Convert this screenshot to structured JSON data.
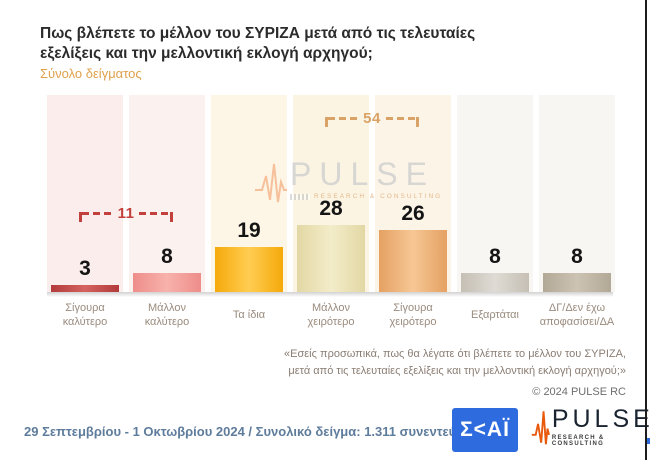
{
  "header": {
    "title": "Πως βλέπετε το μέλλον του ΣΥΡΙΖΑ μετά από τις τελευταίες\nεξελίξεις και την μελλοντική εκλογή αρχηγού;",
    "subtitle": "Σύνολο δείγματος"
  },
  "chart_data": {
    "type": "bar",
    "title": "Πως βλέπετε το μέλλον του ΣΥΡΙΖΑ μετά από τις τελευταίες εξελίξεις και την μελλοντική εκλογή αρχηγού;",
    "subtitle": "Σύνολο δείγματος",
    "categories": [
      "Σίγουρα\nκαλύτερο",
      "Μάλλον\nκαλύτερο",
      "Τα ίδια",
      "Μάλλον\nχειρότερο",
      "Σίγουρα\nχειρότερο",
      "Εξαρτάται",
      "ΔΓ/Δεν έχω\nαποφασίσει/ΔΑ"
    ],
    "values": [
      3,
      8,
      19,
      28,
      26,
      8,
      8
    ],
    "group_sums": [
      {
        "label": "11",
        "from": 0,
        "to": 1,
        "color": "#c2413c"
      },
      {
        "label": "54",
        "from": 3,
        "to": 4,
        "color": "#d9a266"
      }
    ],
    "bar_colors": [
      {
        "edge": "#b23b3b",
        "center": "#d4625f"
      },
      {
        "edge": "#ee8d8a",
        "center": "#f8b2ac"
      },
      {
        "edge": "#f5a90a",
        "center": "#ffcd52"
      },
      {
        "edge": "#e2d7a4",
        "center": "#f3ecc9"
      },
      {
        "edge": "#e5a162",
        "center": "#f6c795"
      },
      {
        "edge": "#c5bfb4",
        "center": "#dfdbd4"
      },
      {
        "edge": "#b2a896",
        "center": "#ccc3b3"
      }
    ],
    "column_bg": [
      "#faedeb",
      "#fbf1ef",
      "#fdf6e7",
      "#fbf4e3",
      "#fcf4e7",
      "#f8f6f3",
      "#f8f6f3"
    ],
    "ylim": [
      0,
      83
    ],
    "grid": false,
    "legend": false
  },
  "watermark": {
    "brand": "PULSE",
    "sub": "RESEARCH & CONSULTING"
  },
  "footer": {
    "question": "«Εσείς προσωπικά, πως θα λέγατε ότι βλέπετε το μέλλον του ΣΥΡΙΖΑ,\nμετά από τις τελευταίες εξελίξεις και την μελλοντική εκλογή αρχηγού;»",
    "copyright": "© 2024 PULSE RC",
    "fieldwork": "29 Σεπτεμβρίου - 1 Οκτωβρίου 2024  /  Συνολικό δείγμα:  1.311 συνεντεύξεις"
  },
  "logos": {
    "skai": "Σ<ΑΪ",
    "pulse": "PULSE",
    "pulse_sub": "RESEARCH & CONSULTING"
  },
  "colors": {
    "subtitle": "#dfa14c",
    "date_text": "#5e7c9b",
    "skai_blue": "#2d6bdf",
    "pulse_orange": "#e8590c"
  }
}
